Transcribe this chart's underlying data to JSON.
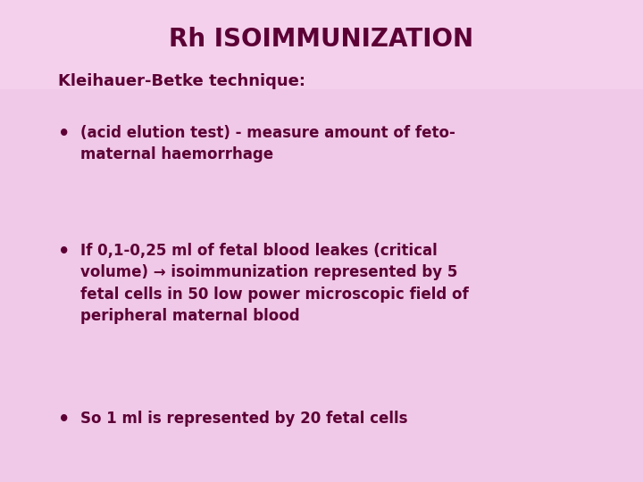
{
  "title": "Rh ISOIMMUNIZATION",
  "title_color": "#5c0035",
  "title_fontsize": 20,
  "subtitle": "Kleihauer-Betke technique:",
  "subtitle_color": "#5c0035",
  "subtitle_fontsize": 13,
  "bullets": [
    "(acid elution test) - measure amount of feto-\nmaternal haemorrhage",
    "If 0,1-0,25 ml of fetal blood leakes (critical\nvolume) → isoimmunization represented by 5\nfetal cells in 50 low power microscopic field of\nperipheral maternal blood",
    "So 1 ml is represented by 20 fetal cells"
  ],
  "bullet_color": "#5c0035",
  "bullet_fontsize": 12,
  "background_color": "#f0c8e8",
  "fig_width": 7.2,
  "fig_height": 5.4,
  "dpi": 100
}
